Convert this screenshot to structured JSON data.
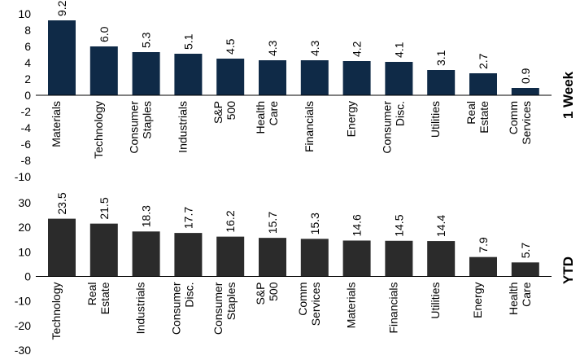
{
  "chart_data": [
    {
      "type": "bar",
      "side_label": "1 Week",
      "bar_color": "#0f2a47",
      "ylim": [
        -10,
        10
      ],
      "yticks": [
        10,
        8,
        6,
        4,
        2,
        0,
        -2,
        -4,
        -6,
        -8,
        -10
      ],
      "categories": [
        "Materials",
        "Technology",
        "Consumer Staples",
        "Industrials",
        "S&P 500",
        "Health Care",
        "Financials",
        "Energy",
        "Consumer Disc.",
        "Utilities",
        "Real Estate",
        "Comm Services"
      ],
      "values": [
        9.2,
        6.0,
        5.3,
        5.1,
        4.5,
        4.3,
        4.3,
        4.2,
        4.1,
        3.1,
        2.7,
        0.9
      ],
      "value_labels": [
        "9.2",
        "6.0",
        "5.3",
        "5.1",
        "4.5",
        "4.3",
        "4.3",
        "4.2",
        "4.1",
        "3.1",
        "2.7",
        "0.9"
      ]
    },
    {
      "type": "bar",
      "side_label": "YTD",
      "bar_color": "#2b2b2b",
      "ylim": [
        -30,
        30
      ],
      "yticks": [
        30,
        20,
        10,
        0,
        -10,
        -20,
        -30
      ],
      "categories": [
        "Technology",
        "Real Estate",
        "Industrials",
        "Consumer Disc.",
        "Consumer Staples",
        "S&P 500",
        "Comm Services",
        "Materials",
        "Financials",
        "Utilities",
        "Energy",
        "Health Care"
      ],
      "values": [
        23.5,
        21.5,
        18.3,
        17.7,
        16.2,
        15.7,
        15.3,
        14.6,
        14.5,
        14.4,
        7.9,
        5.7
      ],
      "value_labels": [
        "23.5",
        "21.5",
        "18.3",
        "17.7",
        "16.2",
        "15.7",
        "15.3",
        "14.6",
        "14.5",
        "14.4",
        "7.9",
        "5.7"
      ]
    }
  ]
}
